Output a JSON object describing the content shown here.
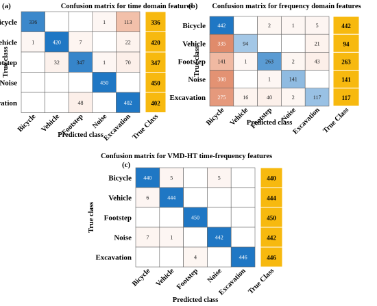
{
  "chart_data": [
    {
      "type": "heatmap",
      "panel_label": "(a)",
      "title": "Confusion matrix for time domain features",
      "ylabel": "True class",
      "xlabel": "Predicted class",
      "rows": [
        "Bicycle",
        "Vehicle",
        "Footstep",
        "Noise",
        "Excavation"
      ],
      "columns": [
        "Bicycle",
        "Vehicle",
        "Footstep",
        "Noise",
        "Excavation"
      ],
      "matrix": [
        [
          336,
          null,
          null,
          1,
          113
        ],
        [
          1,
          420,
          7,
          null,
          22
        ],
        [
          null,
          32,
          347,
          1,
          70
        ],
        [
          null,
          null,
          null,
          450,
          null
        ],
        [
          null,
          null,
          48,
          null,
          402
        ]
      ],
      "true_class_label": "True Class",
      "true_class_values": [
        336,
        420,
        347,
        450,
        402
      ]
    },
    {
      "type": "heatmap",
      "panel_label": "(b)",
      "title": "Confusion matrix for frequency domain features",
      "ylabel": "True class",
      "xlabel": "Predicted class",
      "rows": [
        "Bicycle",
        "Vehicle",
        "Footstep",
        "Noise",
        "Excavation"
      ],
      "columns": [
        "Bicycle",
        "Vehicle",
        "Footstep",
        "Noise",
        "Excavation"
      ],
      "matrix": [
        [
          442,
          null,
          2,
          1,
          5
        ],
        [
          335,
          94,
          null,
          null,
          21
        ],
        [
          141,
          1,
          263,
          2,
          43
        ],
        [
          308,
          null,
          1,
          141,
          null
        ],
        [
          275,
          16,
          40,
          2,
          117
        ]
      ],
      "true_class_label": "True Class",
      "true_class_values": [
        442,
        94,
        263,
        141,
        117
      ]
    },
    {
      "type": "heatmap",
      "panel_label": "(c)",
      "title": "Confusion matrix for VMD-HT time-frequency features",
      "ylabel": "True class",
      "xlabel": "Predicted class",
      "rows": [
        "Bicycle",
        "Vehicle",
        "Footstep",
        "Noise",
        "Excavation"
      ],
      "columns": [
        "Bicycle",
        "Vehicle",
        "Footstep",
        "Noise",
        "Excavation"
      ],
      "matrix": [
        [
          440,
          5,
          null,
          5,
          null
        ],
        [
          6,
          444,
          null,
          null,
          null
        ],
        [
          null,
          null,
          450,
          null,
          null
        ],
        [
          7,
          1,
          null,
          442,
          null
        ],
        [
          null,
          null,
          4,
          null,
          446
        ]
      ],
      "true_class_label": "True Class",
      "true_class_values": [
        440,
        444,
        450,
        442,
        446
      ]
    }
  ],
  "colors": {
    "diagonal_strong": "#1f77c4",
    "diagonal_light": "#a9cbe8",
    "offdiag_strong": "#e08a6a",
    "offdiag_light": "#fcefe9",
    "true_class_bg": "#f7b90f",
    "grid_line": "#666666"
  }
}
